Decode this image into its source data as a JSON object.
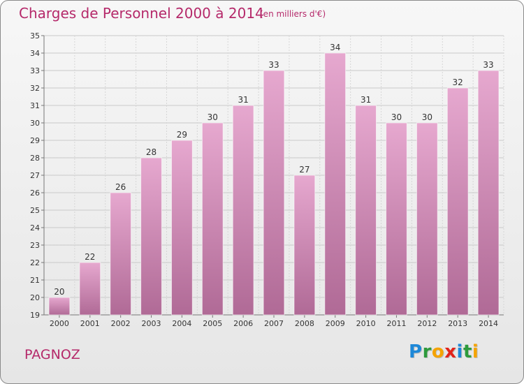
{
  "header": {
    "title": "Charges de Personnel 2000 à 2014",
    "subtitle": "(en milliers d'€)"
  },
  "footer": {
    "commune": "PAGNOZ",
    "logo": [
      "P",
      "r",
      "o",
      "x",
      "i",
      "t",
      "i"
    ]
  },
  "colors": {
    "title": "#b5296a",
    "bar_top": "#e6a8cf",
    "bar_bottom": "#b06a96",
    "logo": [
      "#1e88d8",
      "#2d9a3c",
      "#f5a300",
      "#e2231a",
      "#1e88d8",
      "#2d9a3c",
      "#f5a300"
    ]
  },
  "chart_data": {
    "type": "bar",
    "title": "Charges de Personnel 2000 à 2014",
    "subtitle": "(en milliers d'€)",
    "xlabel": "",
    "ylabel": "",
    "categories": [
      "2000",
      "2001",
      "2002",
      "2003",
      "2004",
      "2005",
      "2006",
      "2007",
      "2008",
      "2009",
      "2010",
      "2011",
      "2012",
      "2013",
      "2014"
    ],
    "values": [
      20,
      22,
      26,
      28,
      29,
      30,
      31,
      33,
      27,
      34,
      31,
      30,
      30,
      32,
      33
    ],
    "ylim": [
      19,
      35
    ],
    "yticks": [
      19,
      20,
      21,
      22,
      23,
      24,
      25,
      26,
      27,
      28,
      29,
      30,
      31,
      32,
      33,
      34,
      35
    ],
    "grid": true,
    "data_labels": true
  }
}
